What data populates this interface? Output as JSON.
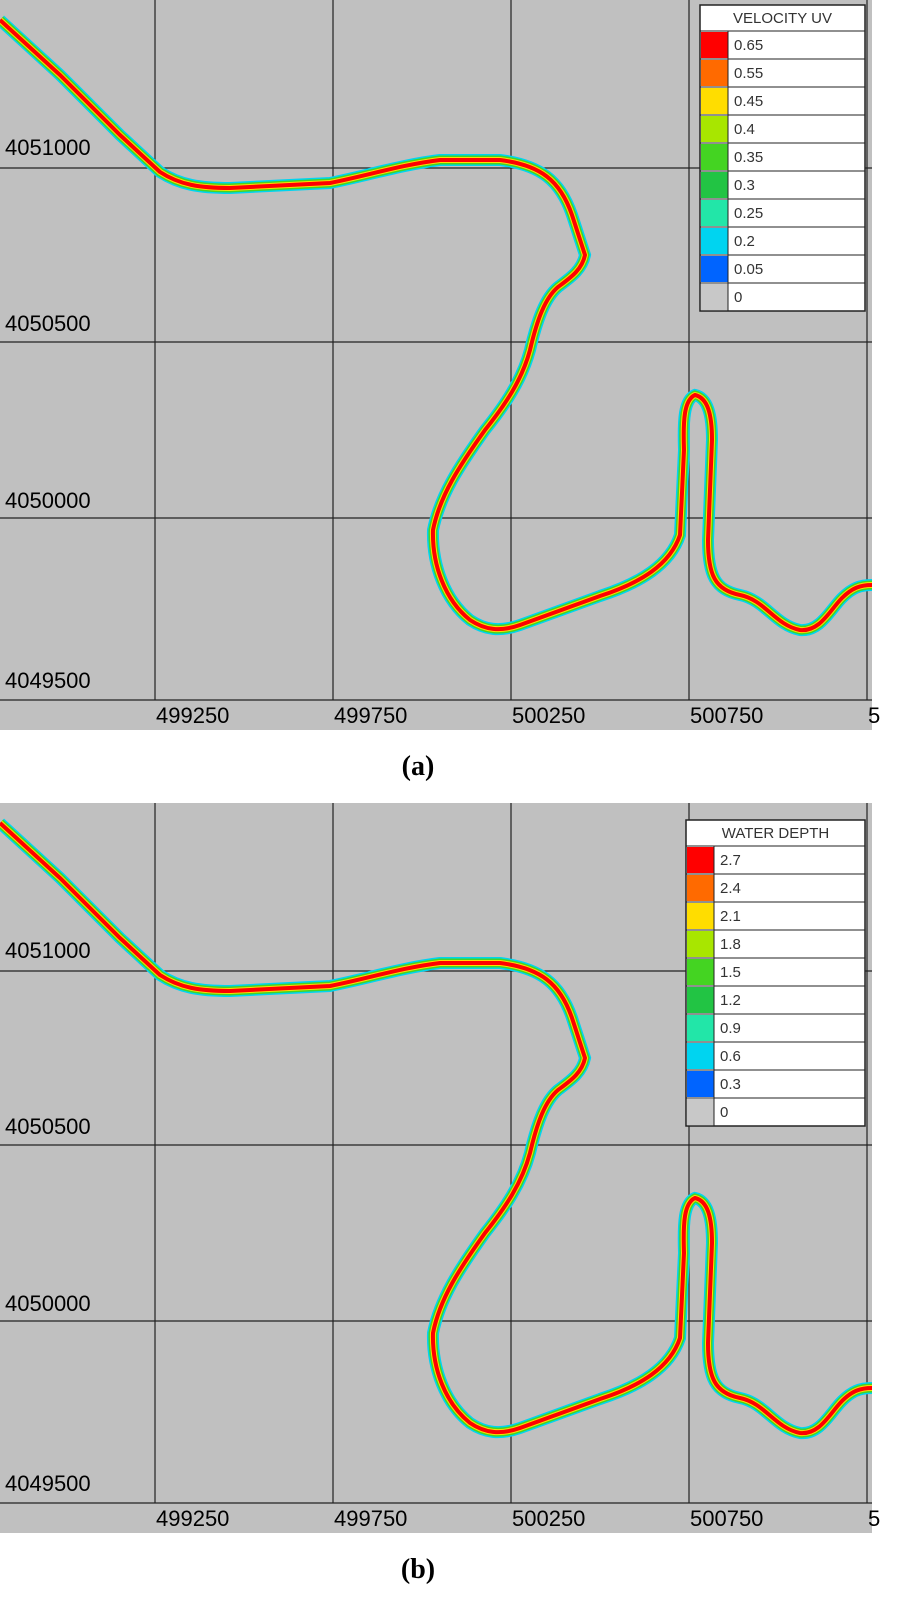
{
  "panels": [
    {
      "caption": "(a)",
      "y_labels": [
        "4051000",
        "4050500",
        "4050000",
        "4049500"
      ],
      "x_labels": [
        "499250",
        "499750",
        "500250",
        "500750",
        "5"
      ],
      "legend": {
        "title": "VELOCITY UV",
        "entries": [
          {
            "label": "0.65",
            "color": "#ff0000"
          },
          {
            "label": "0.55",
            "color": "#ff6a00"
          },
          {
            "label": "0.45",
            "color": "#ffdd00"
          },
          {
            "label": "0.4",
            "color": "#a8e600"
          },
          {
            "label": "0.35",
            "color": "#44d422"
          },
          {
            "label": "0.3",
            "color": "#22c444"
          },
          {
            "label": "0.25",
            "color": "#22e6a8"
          },
          {
            "label": "0.2",
            "color": "#00d4f0"
          },
          {
            "label": "0.05",
            "color": "#0064ff"
          },
          {
            "label": "0",
            "color": "#c8c8c8"
          }
        ]
      }
    },
    {
      "caption": "(b)",
      "y_labels": [
        "4051000",
        "4050500",
        "4050000",
        "4049500"
      ],
      "x_labels": [
        "499250",
        "499750",
        "500250",
        "500750",
        "5"
      ],
      "legend": {
        "title": "WATER DEPTH",
        "entries": [
          {
            "label": "2.7",
            "color": "#ff0000"
          },
          {
            "label": "2.4",
            "color": "#ff6a00"
          },
          {
            "label": "2.1",
            "color": "#ffdd00"
          },
          {
            "label": "1.8",
            "color": "#a8e600"
          },
          {
            "label": "1.5",
            "color": "#44d422"
          },
          {
            "label": "1.2",
            "color": "#22c444"
          },
          {
            "label": "0.9",
            "color": "#22e6a8"
          },
          {
            "label": "0.6",
            "color": "#00d4f0"
          },
          {
            "label": "0.3",
            "color": "#0064ff"
          },
          {
            "label": "0",
            "color": "#c8c8c8"
          }
        ]
      }
    }
  ]
}
